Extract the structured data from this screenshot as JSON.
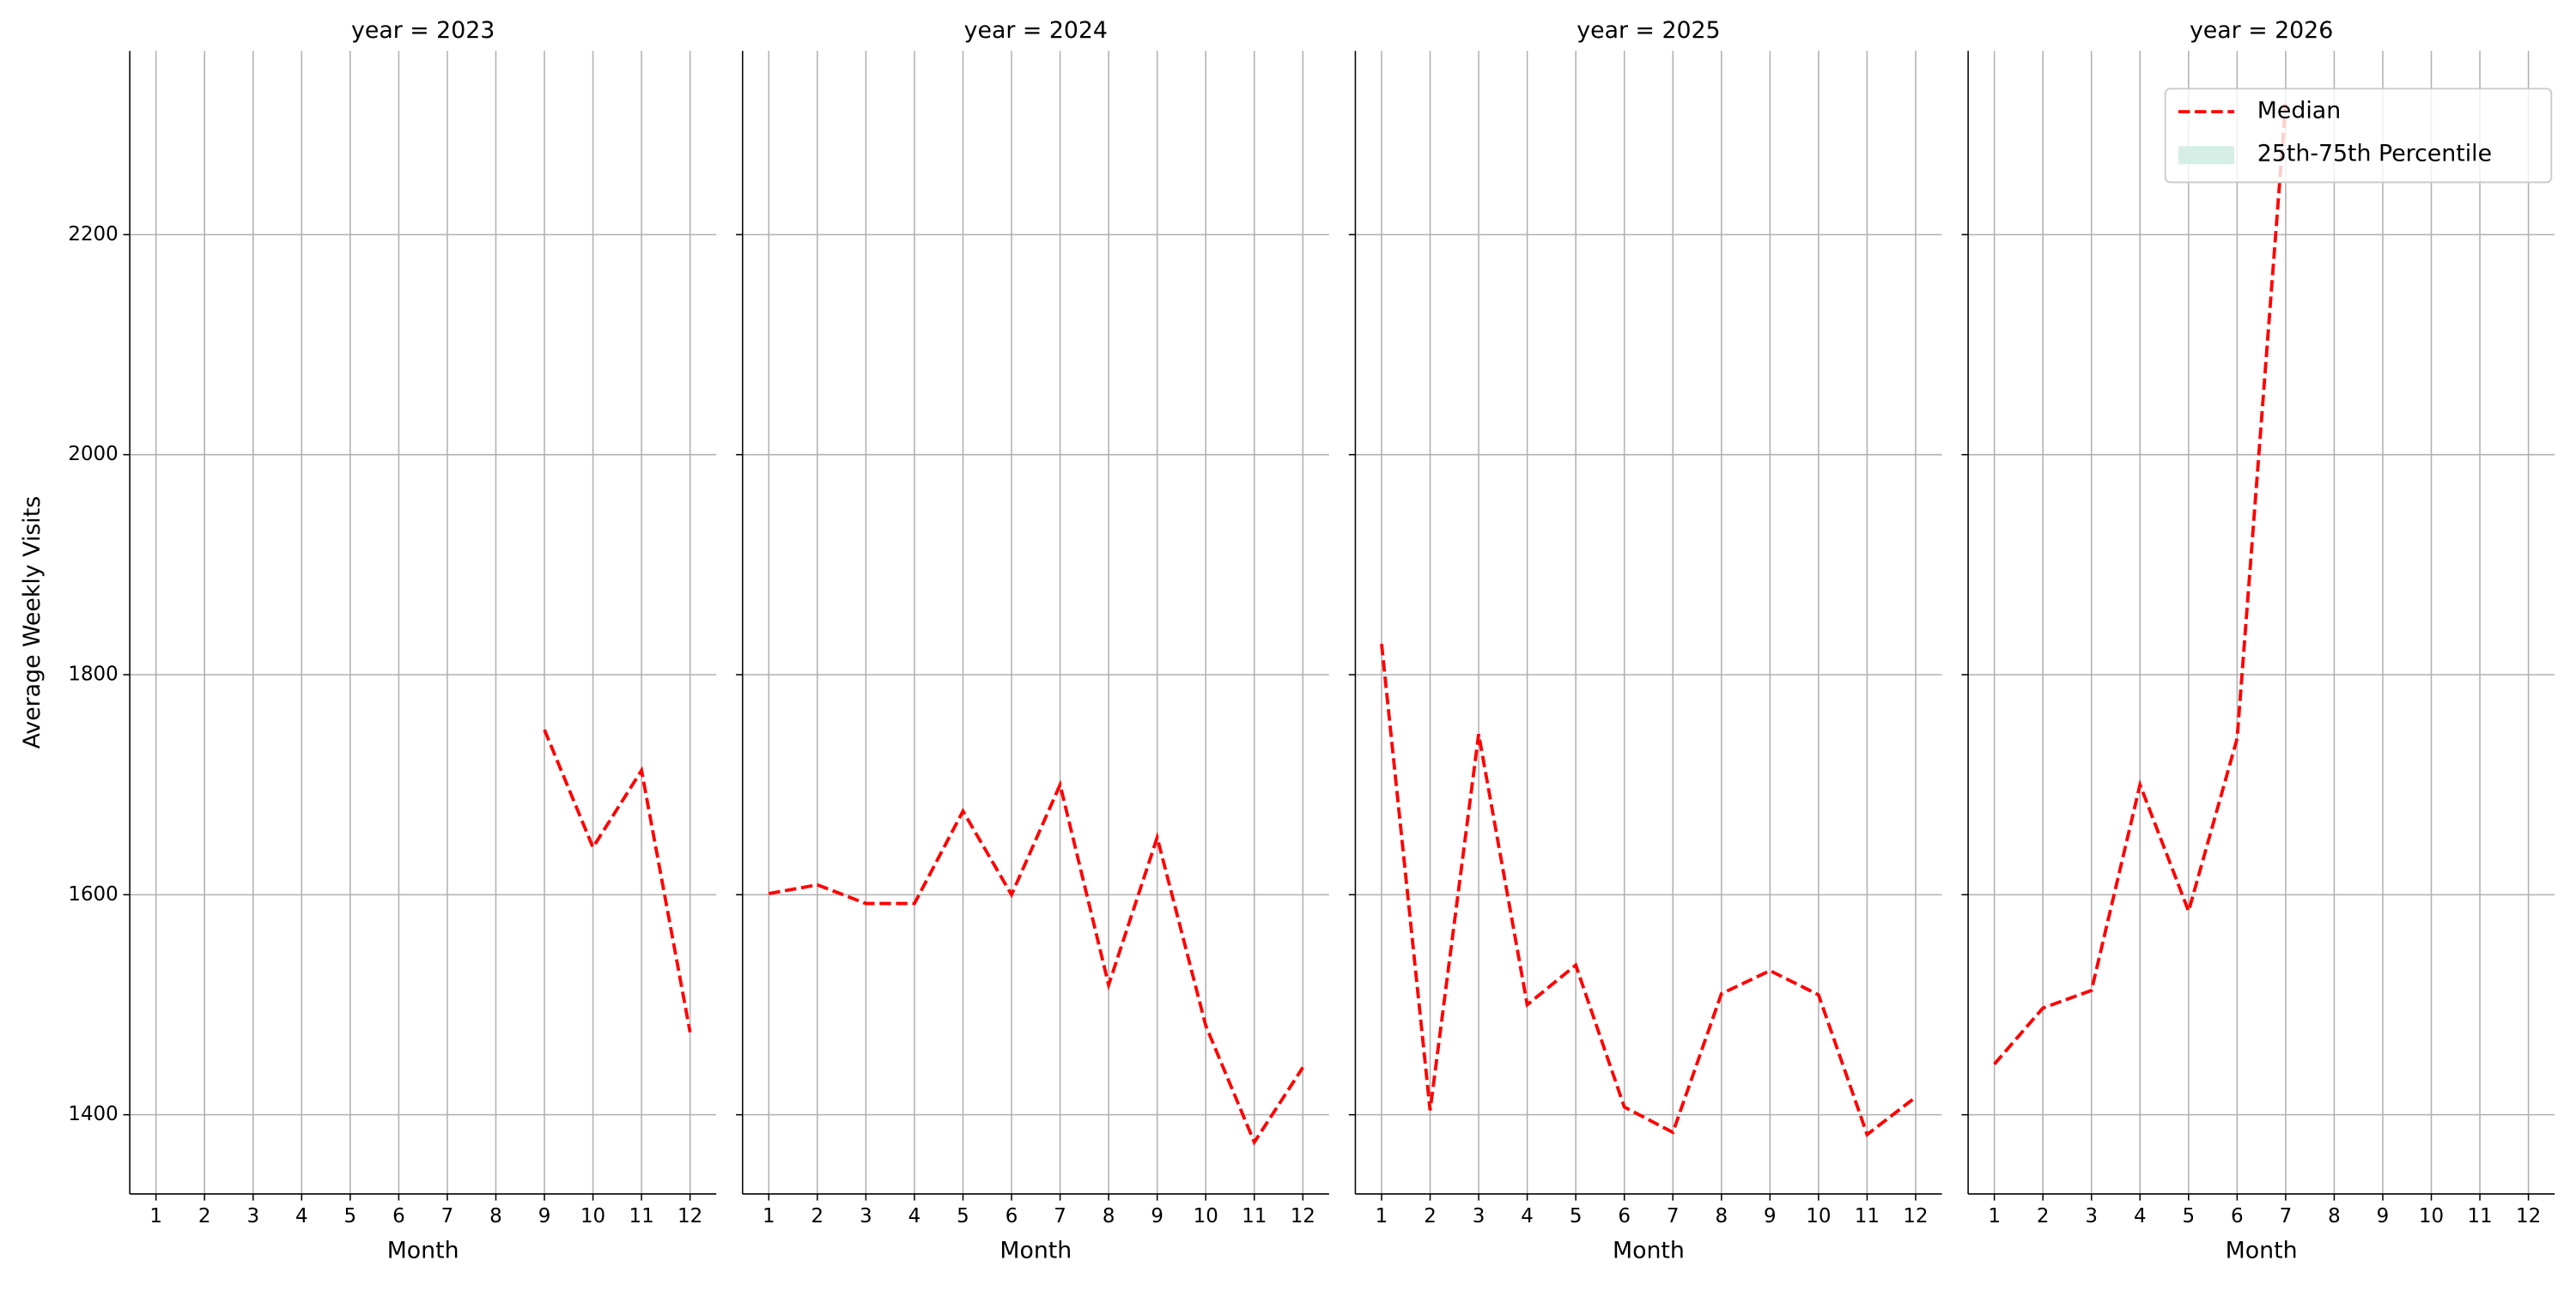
{
  "chart_data": [
    {
      "type": "line",
      "title": "year = 2023",
      "xlabel": "Month",
      "ylabel": "Average Weekly Visits",
      "x": [
        1,
        2,
        3,
        4,
        5,
        6,
        7,
        8,
        9,
        10,
        11,
        12
      ],
      "xlim": [
        0.46,
        12.54
      ],
      "xticks": [
        1,
        2,
        3,
        4,
        5,
        6,
        7,
        8,
        9,
        10,
        11,
        12
      ],
      "ylim": [
        1328,
        2367
      ],
      "yticks": [
        1400,
        1600,
        1800,
        2000,
        2200
      ],
      "grid": true,
      "series": [
        {
          "name": "Median",
          "color": "#ff0000",
          "dashed": true,
          "values": [
            null,
            null,
            null,
            null,
            null,
            null,
            null,
            null,
            1750,
            1643,
            1713,
            1475
          ]
        }
      ]
    },
    {
      "type": "line",
      "title": "year = 2024",
      "xlabel": "Month",
      "x": [
        1,
        2,
        3,
        4,
        5,
        6,
        7,
        8,
        9,
        10,
        11,
        12
      ],
      "xlim": [
        0.46,
        12.54
      ],
      "xticks": [
        1,
        2,
        3,
        4,
        5,
        6,
        7,
        8,
        9,
        10,
        11,
        12
      ],
      "ylim": [
        1328,
        2367
      ],
      "yticks": [
        1400,
        1600,
        1800,
        2000,
        2200
      ],
      "grid": true,
      "series": [
        {
          "name": "Median",
          "color": "#ff0000",
          "dashed": true,
          "values": [
            1601,
            1609,
            1592,
            1592,
            1676,
            1600,
            1700,
            1518,
            1652,
            1481,
            1375,
            1443
          ]
        }
      ]
    },
    {
      "type": "line",
      "title": "year = 2025",
      "xlabel": "Month",
      "x": [
        1,
        2,
        3,
        4,
        5,
        6,
        7,
        8,
        9,
        10,
        11,
        12
      ],
      "xlim": [
        0.46,
        12.54
      ],
      "xticks": [
        1,
        2,
        3,
        4,
        5,
        6,
        7,
        8,
        9,
        10,
        11,
        12
      ],
      "ylim": [
        1328,
        2367
      ],
      "yticks": [
        1400,
        1600,
        1800,
        2000,
        2200
      ],
      "grid": true,
      "series": [
        {
          "name": "Median",
          "color": "#ff0000",
          "dashed": true,
          "values": [
            1828,
            1404,
            1746,
            1500,
            1536,
            1407,
            1384,
            1510,
            1531,
            1509,
            1382,
            1416
          ]
        }
      ]
    },
    {
      "type": "line",
      "title": "year = 2026",
      "xlabel": "Month",
      "x": [
        1,
        2,
        3,
        4,
        5,
        6,
        7,
        8,
        9,
        10,
        11,
        12
      ],
      "xlim": [
        0.46,
        12.54
      ],
      "xticks": [
        1,
        2,
        3,
        4,
        5,
        6,
        7,
        8,
        9,
        10,
        11,
        12
      ],
      "ylim": [
        1328,
        2367
      ],
      "yticks": [
        1400,
        1600,
        1800,
        2000,
        2200
      ],
      "grid": true,
      "legend": "upper right",
      "series": [
        {
          "name": "Median",
          "color": "#ff0000",
          "dashed": true,
          "values": [
            1446,
            1497,
            1513,
            1700,
            1585,
            1742,
            2319,
            null,
            null,
            null,
            null,
            null
          ]
        },
        {
          "name": "25th-75th Percentile",
          "color": "#d5eee6",
          "kind": "band"
        }
      ]
    }
  ]
}
